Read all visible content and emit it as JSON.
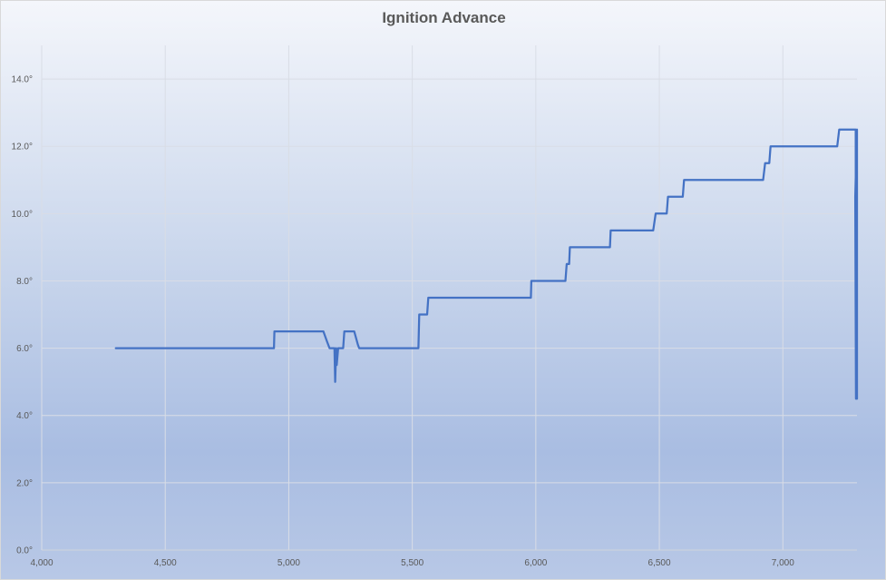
{
  "chart_data": {
    "type": "line",
    "title": "Ignition Advance",
    "xlabel": "",
    "ylabel": "",
    "xlim": [
      4000,
      7300
    ],
    "ylim": [
      0,
      15
    ],
    "x_ticks": [
      4000,
      4500,
      5000,
      5500,
      6000,
      6500,
      7000
    ],
    "x_tick_labels": [
      "4,000",
      "4,500",
      "5,000",
      "5,500",
      "6,000",
      "6,500",
      "7,000"
    ],
    "y_ticks": [
      0,
      2,
      4,
      6,
      8,
      10,
      12,
      14
    ],
    "y_tick_labels": [
      "0.0°",
      "2.0°",
      "4.0°",
      "6.0°",
      "8.0°",
      "10.0°",
      "12.0°",
      "14.0°"
    ],
    "grid": true,
    "legend": "none",
    "series": [
      {
        "color": "#4472c4",
        "points": [
          [
            4300,
            6.0
          ],
          [
            4940,
            6.0
          ],
          [
            4942,
            6.5
          ],
          [
            5140,
            6.5
          ],
          [
            5155,
            6.2
          ],
          [
            5165,
            6.0
          ],
          [
            5185,
            6.0
          ],
          [
            5188,
            5.0
          ],
          [
            5192,
            6.0
          ],
          [
            5194,
            5.5
          ],
          [
            5200,
            6.0
          ],
          [
            5220,
            6.0
          ],
          [
            5225,
            6.5
          ],
          [
            5265,
            6.5
          ],
          [
            5280,
            6.1
          ],
          [
            5285,
            6.0
          ],
          [
            5525,
            6.0
          ],
          [
            5528,
            7.0
          ],
          [
            5560,
            7.0
          ],
          [
            5565,
            7.5
          ],
          [
            5980,
            7.5
          ],
          [
            5982,
            8.0
          ],
          [
            6120,
            8.0
          ],
          [
            6125,
            8.5
          ],
          [
            6135,
            8.5
          ],
          [
            6138,
            9.0
          ],
          [
            6300,
            9.0
          ],
          [
            6303,
            9.5
          ],
          [
            6475,
            9.5
          ],
          [
            6485,
            10.0
          ],
          [
            6530,
            10.0
          ],
          [
            6535,
            10.5
          ],
          [
            6595,
            10.5
          ],
          [
            6600,
            11.0
          ],
          [
            6920,
            11.0
          ],
          [
            6928,
            11.5
          ],
          [
            6945,
            11.5
          ],
          [
            6950,
            12.0
          ],
          [
            7220,
            12.0
          ],
          [
            7228,
            12.5
          ],
          [
            7295,
            12.5
          ],
          [
            7296,
            4.5
          ],
          [
            7293,
            10.5
          ],
          [
            7300,
            12.5
          ],
          [
            7300,
            4.5
          ]
        ]
      }
    ]
  }
}
